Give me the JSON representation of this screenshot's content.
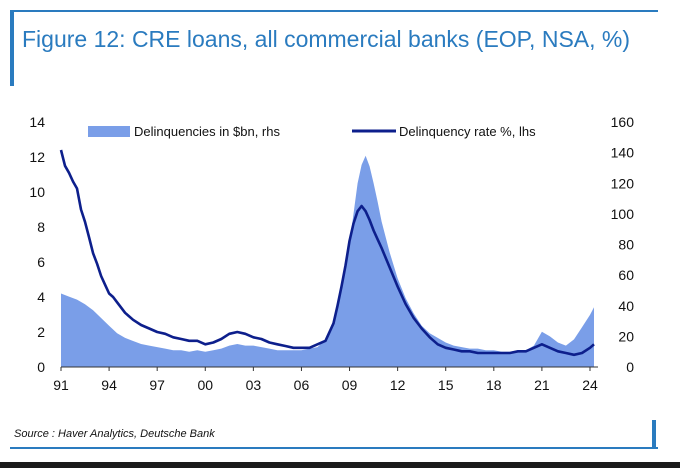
{
  "title": "Figure 12: CRE loans, all commercial banks (EOP, NSA, %)",
  "source": "Source : Haver Analytics, Deutsche Bank",
  "colors": {
    "frame": "#2a7bbf",
    "area": "#7a9ee8",
    "line": "#0d1f8c"
  },
  "chart_data": {
    "type": "line",
    "x_tick_labels": [
      "91",
      "94",
      "97",
      "00",
      "03",
      "06",
      "09",
      "12",
      "15",
      "18",
      "21",
      "24"
    ],
    "x_ticks": [
      1991,
      1994,
      1997,
      2000,
      2003,
      2006,
      2009,
      2012,
      2015,
      2018,
      2021,
      2024
    ],
    "xlim": [
      1991,
      2024.5
    ],
    "ylim_left": [
      0,
      14
    ],
    "yticks_left": [
      0,
      2,
      4,
      6,
      8,
      10,
      12,
      14
    ],
    "ylim_right": [
      0,
      160
    ],
    "yticks_right": [
      0,
      20,
      40,
      60,
      80,
      100,
      120,
      140,
      160
    ],
    "grid": false,
    "legend_position": "top",
    "series": [
      {
        "name": "Delinquencies in $bn, rhs",
        "kind": "area",
        "axis": "right",
        "x": [
          1991,
          1991.5,
          1992,
          1992.5,
          1993,
          1993.5,
          1994,
          1994.5,
          1995,
          1995.5,
          1996,
          1996.5,
          1997,
          1997.5,
          1998,
          1998.5,
          1999,
          1999.5,
          2000,
          2000.5,
          2001,
          2001.5,
          2002,
          2002.5,
          2003,
          2003.5,
          2004,
          2004.5,
          2005,
          2005.5,
          2006,
          2006.5,
          2007,
          2007.5,
          2008,
          2008.5,
          2009,
          2009.25,
          2009.5,
          2009.75,
          2010,
          2010.25,
          2010.5,
          2010.75,
          2011,
          2011.5,
          2012,
          2012.5,
          2013,
          2013.5,
          2014,
          2014.5,
          2015,
          2015.5,
          2016,
          2016.5,
          2017,
          2017.5,
          2018,
          2018.5,
          2019,
          2019.5,
          2020,
          2020.5,
          2021,
          2021.5,
          2022,
          2022.5,
          2023,
          2023.5,
          2024,
          2024.25
        ],
        "values": [
          48,
          46,
          44,
          41,
          37,
          32,
          27,
          22,
          19,
          17,
          15,
          14,
          13,
          12,
          11,
          11,
          10,
          11,
          10,
          11,
          12,
          14,
          15,
          14,
          14,
          13,
          12,
          11,
          11,
          11,
          11,
          12,
          13,
          18,
          28,
          50,
          80,
          100,
          120,
          132,
          138,
          131,
          120,
          108,
          95,
          75,
          58,
          45,
          35,
          27,
          22,
          19,
          16,
          14,
          13,
          12,
          12,
          11,
          11,
          10,
          10,
          10,
          11,
          14,
          23,
          20,
          16,
          14,
          18,
          26,
          34,
          39
        ]
      },
      {
        "name": "Delinquency rate %, lhs",
        "kind": "line",
        "axis": "left",
        "x": [
          1991,
          1991.25,
          1991.5,
          1991.75,
          1992,
          1992.25,
          1992.5,
          1992.75,
          1993,
          1993.25,
          1993.5,
          1993.75,
          1994,
          1994.25,
          1994.5,
          1995,
          1995.5,
          1996,
          1996.5,
          1997,
          1997.5,
          1998,
          1998.5,
          1999,
          1999.5,
          2000,
          2000.5,
          2001,
          2001.5,
          2002,
          2002.5,
          2003,
          2003.5,
          2004,
          2004.5,
          2005,
          2005.5,
          2006,
          2006.5,
          2007,
          2007.5,
          2008,
          2008.25,
          2008.5,
          2008.75,
          2009,
          2009.25,
          2009.5,
          2009.75,
          2010,
          2010.25,
          2010.5,
          2010.75,
          2011,
          2011.5,
          2012,
          2012.5,
          2013,
          2013.5,
          2014,
          2014.5,
          2015,
          2015.5,
          2016,
          2016.5,
          2017,
          2017.5,
          2018,
          2018.5,
          2019,
          2019.5,
          2020,
          2020.5,
          2021,
          2021.5,
          2022,
          2022.5,
          2023,
          2023.5,
          2024,
          2024.25
        ],
        "values": [
          12.4,
          11.5,
          11.1,
          10.6,
          10.2,
          9.0,
          8.3,
          7.4,
          6.5,
          5.9,
          5.2,
          4.7,
          4.2,
          4.0,
          3.7,
          3.1,
          2.7,
          2.4,
          2.2,
          2.0,
          1.9,
          1.7,
          1.6,
          1.5,
          1.5,
          1.3,
          1.4,
          1.6,
          1.9,
          2.0,
          1.9,
          1.7,
          1.6,
          1.4,
          1.3,
          1.2,
          1.1,
          1.1,
          1.1,
          1.3,
          1.5,
          2.5,
          3.5,
          4.6,
          5.8,
          7.2,
          8.2,
          8.9,
          9.2,
          8.9,
          8.4,
          7.8,
          7.3,
          6.8,
          5.7,
          4.6,
          3.6,
          2.8,
          2.2,
          1.7,
          1.3,
          1.1,
          1.0,
          0.9,
          0.9,
          0.8,
          0.8,
          0.8,
          0.8,
          0.8,
          0.9,
          0.9,
          1.1,
          1.3,
          1.1,
          0.9,
          0.8,
          0.7,
          0.8,
          1.1,
          1.3
        ]
      }
    ]
  }
}
